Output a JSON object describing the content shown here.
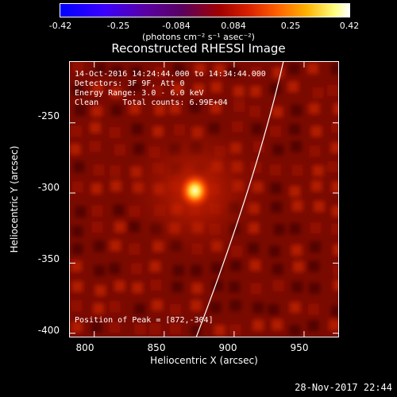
{
  "colorbar": {
    "ticks": [
      "-0.42",
      "-0.25",
      "-0.084",
      "0.084",
      "0.25",
      "0.42"
    ],
    "units": "(photons cm⁻² s⁻¹ asec⁻²)"
  },
  "title": "Reconstructed RHESSI Image",
  "info": {
    "line1": "14-Oct-2016 14:24:44.000 to 14:34:44.000",
    "line2": "Detectors: 3F 9F, Att 0",
    "line3": "Energy Range: 3.0 - 6.0 keV",
    "line4": "Clean     Total counts: 6.99E+04",
    "peak": "Position of Peak = [872,-304]"
  },
  "axes": {
    "x_title": "Heliocentric X (arcsec)",
    "y_title": "Heliocentric Y (arcsec)",
    "x_ticks": [
      "800",
      "850",
      "900",
      "950"
    ],
    "y_ticks": [
      "-250",
      "-300",
      "-350",
      "-400"
    ],
    "x_tick_values": [
      800,
      850,
      900,
      950
    ],
    "y_tick_values": [
      -250,
      -300,
      -350,
      -400
    ],
    "x_range": [
      782,
      975
    ],
    "y_range": [
      -403,
      -206
    ]
  },
  "source_peak": [
    872,
    -304
  ],
  "date": "28-Nov-2017 22:44",
  "colors": {
    "background": "#000000",
    "image_base": "#7a0a00",
    "peak": "#ffff60",
    "limb_line": "#ffffff"
  }
}
